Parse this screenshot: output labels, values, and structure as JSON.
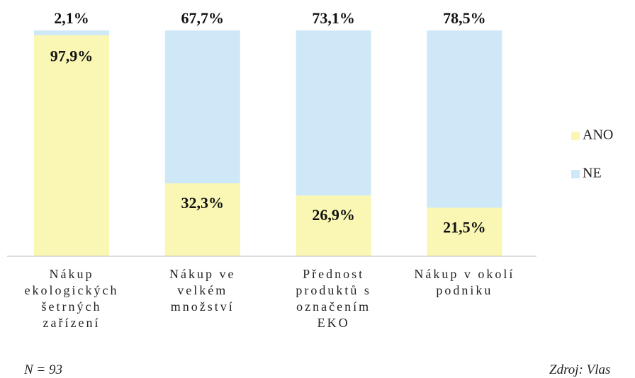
{
  "chart_data": {
    "type": "stacked_bar",
    "categories": [
      "Nákup\nekologických\nšetrných\nzařízení",
      "Nákup ve\nvelkém\nmnožství",
      "Přednost\nproduktů s\noznačením\nEKO",
      "Nákup v okolí\npodniku"
    ],
    "series": [
      {
        "name": "ANO",
        "color": "#f9f7b3",
        "values": [
          97.9,
          32.3,
          26.9,
          21.5
        ],
        "value_labels": [
          "97,9%",
          "32,3%",
          "26,9%",
          "21,5%"
        ]
      },
      {
        "name": "NE",
        "color": "#cfe8f7",
        "values": [
          2.1,
          67.7,
          73.1,
          78.5
        ],
        "value_labels": [
          "2,1%",
          "67,7%",
          "73,1%",
          "78,5%"
        ]
      }
    ],
    "ylim": [
      0,
      100
    ],
    "notes": [
      "N = 93",
      "Zdroj: Vlas"
    ]
  }
}
